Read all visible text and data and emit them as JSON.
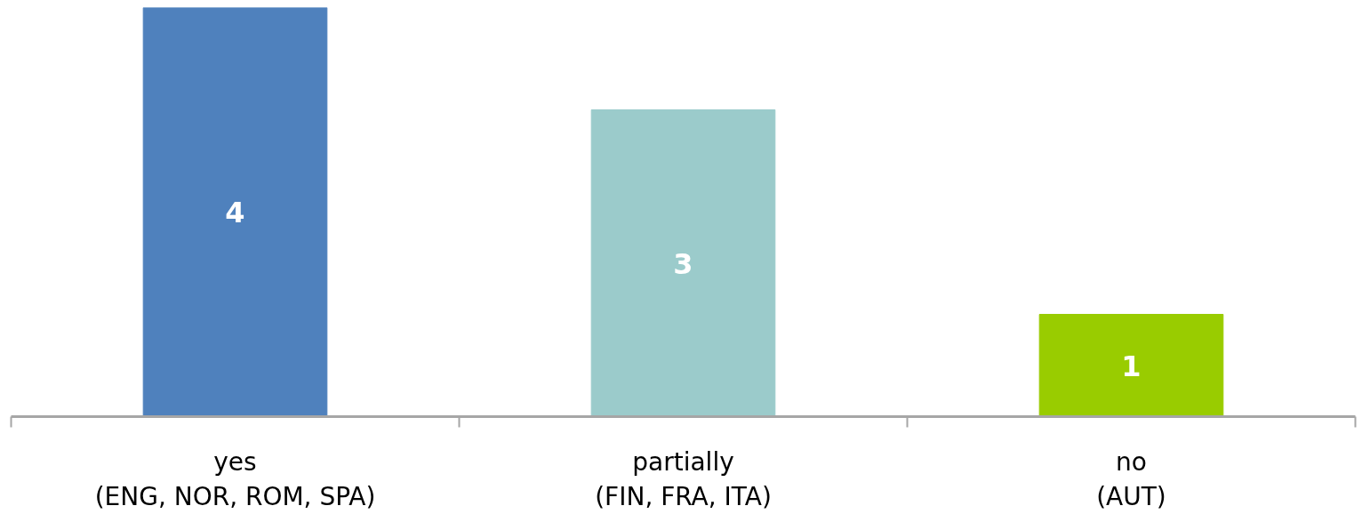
{
  "chart_data": {
    "type": "bar",
    "categories": [
      "yes\n(ENG, NOR, ROM, SPA)",
      "partially\n(FIN, FRA, ITA)",
      "no\n(AUT)"
    ],
    "values": [
      4,
      3,
      1
    ],
    "colors": [
      "#4f81bd",
      "#9bcbcb",
      "#99cc00"
    ],
    "ylim": [
      0,
      4
    ],
    "data_labels": true,
    "tick_labels": "x",
    "grid": false
  }
}
